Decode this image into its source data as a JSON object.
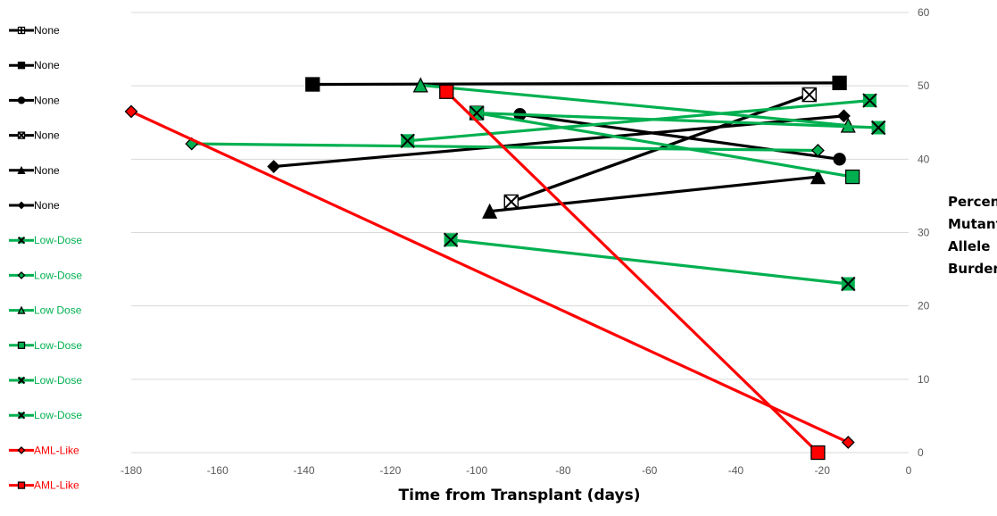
{
  "chart_data": {
    "type": "line",
    "title": "",
    "xlabel": "Time from Transplant (days)",
    "ylabel": "Percent Mutant Allele Burden",
    "ylabel_lines": [
      "Percent",
      "Mutant",
      "Allele",
      "Burden"
    ],
    "x_range": [
      -180,
      0
    ],
    "x_ticks": [
      -180,
      -160,
      -140,
      -120,
      -100,
      -80,
      -60,
      -40,
      -20,
      0
    ],
    "y_range": [
      0,
      60
    ],
    "y_ticks": [
      0,
      10,
      20,
      30,
      40,
      50,
      60
    ],
    "y_axis_side": "right",
    "grid": "horizontal",
    "legend_position": "left",
    "series": [
      {
        "name": "None",
        "color": "#000000",
        "marker": "plus",
        "points": [
          [
            -92,
            34.2
          ],
          [
            -23,
            48.8
          ]
        ]
      },
      {
        "name": "None",
        "color": "#000000",
        "marker": "square",
        "points": [
          [
            -138,
            50.2
          ],
          [
            -16,
            50.4
          ]
        ]
      },
      {
        "name": "None",
        "color": "#000000",
        "marker": "circle",
        "points": [
          [
            -90,
            46.1
          ],
          [
            -16,
            40.0
          ]
        ]
      },
      {
        "name": "None",
        "color": "#000000",
        "marker": "x",
        "points": [
          [
            -92,
            34.2
          ],
          [
            -23,
            48.8
          ]
        ]
      },
      {
        "name": "None",
        "color": "#000000",
        "marker": "triangle",
        "points": [
          [
            -97,
            32.9
          ],
          [
            -21,
            37.6
          ]
        ]
      },
      {
        "name": "None",
        "color": "#000000",
        "marker": "diamond",
        "points": [
          [
            -147,
            39.0
          ],
          [
            -15,
            45.9
          ]
        ]
      },
      {
        "name": "Low-Dose",
        "color": "#00b050",
        "marker": "x-square",
        "points": [
          [
            -106,
            29.0
          ],
          [
            -14,
            23.0
          ]
        ]
      },
      {
        "name": "Low-Dose",
        "color": "#00b050",
        "marker": "diamond",
        "points": [
          [
            -166,
            42.1
          ],
          [
            -21,
            41.2
          ]
        ]
      },
      {
        "name": "Low Dose",
        "color": "#00b050",
        "marker": "triangle",
        "points": [
          [
            -113,
            50.1
          ],
          [
            -14,
            44.6
          ]
        ]
      },
      {
        "name": "Low-Dose",
        "color": "#00b050",
        "marker": "square",
        "points": [
          [
            -100,
            46.3
          ],
          [
            -13,
            37.6
          ]
        ]
      },
      {
        "name": "Low-Dose",
        "color": "#00b050",
        "marker": "x-square",
        "points": [
          [
            -116,
            42.5
          ],
          [
            -9,
            48.0
          ]
        ]
      },
      {
        "name": "Low-Dose",
        "color": "#00b050",
        "marker": "x-square",
        "points": [
          [
            -100,
            46.3
          ],
          [
            -7,
            44.3
          ]
        ]
      },
      {
        "name": "AML-Like",
        "color": "#ff0000",
        "marker": "diamond",
        "points": [
          [
            -180,
            46.5
          ],
          [
            -14,
            1.4
          ]
        ]
      },
      {
        "name": "AML-Like",
        "color": "#ff0000",
        "marker": "square",
        "points": [
          [
            -107,
            49.2
          ],
          [
            -21,
            0
          ]
        ]
      }
    ]
  }
}
